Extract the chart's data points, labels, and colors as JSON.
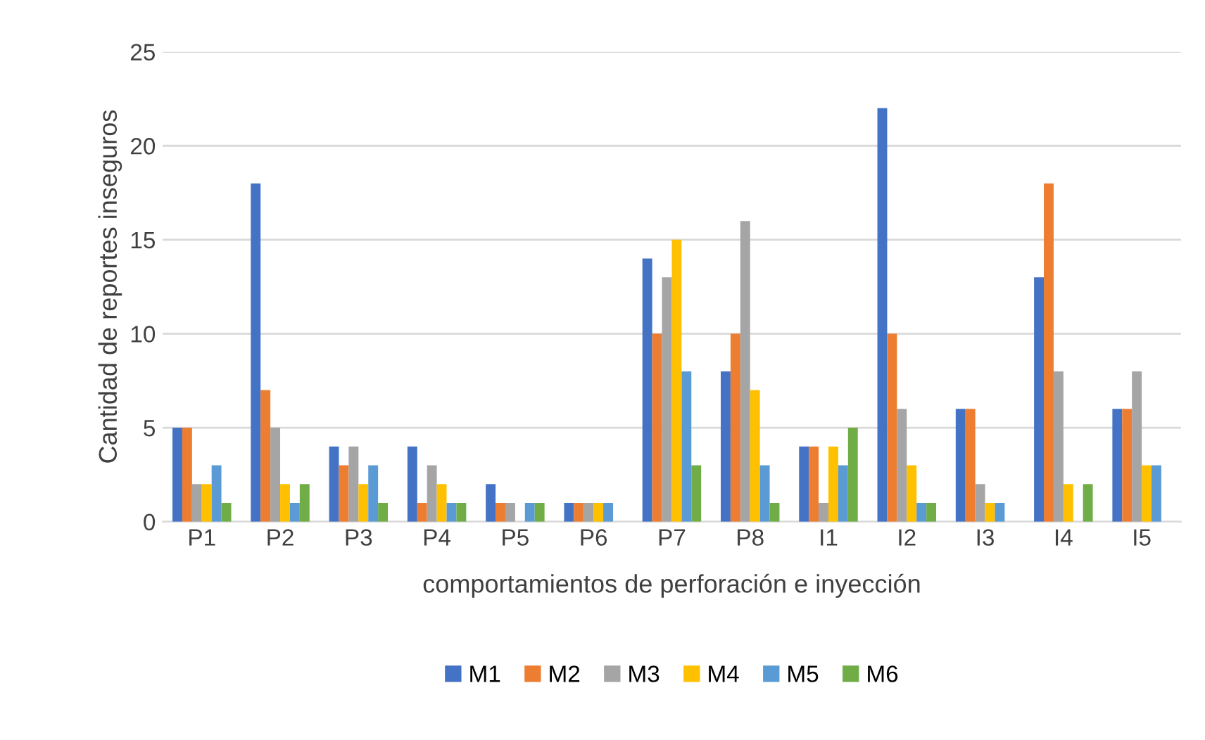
{
  "chart_data": {
    "type": "bar",
    "xlabel": "comportamientos de perforación e inyección",
    "ylabel": "Cantidad de reportes inseguros",
    "categories": [
      "P1",
      "P2",
      "P3",
      "P4",
      "P5",
      "P6",
      "P7",
      "P8",
      "I1",
      "I2",
      "I3",
      "I4",
      "I5"
    ],
    "series": [
      {
        "name": "M1",
        "color": "#4472c4",
        "values": [
          5,
          18,
          4,
          4,
          2,
          1,
          14,
          8,
          4,
          22,
          6,
          13,
          6
        ]
      },
      {
        "name": "M2",
        "color": "#ed7d31",
        "values": [
          5,
          7,
          3,
          1,
          1,
          1,
          10,
          10,
          4,
          10,
          6,
          18,
          6
        ]
      },
      {
        "name": "M3",
        "color": "#a5a5a5",
        "values": [
          2,
          5,
          4,
          3,
          1,
          1,
          13,
          16,
          1,
          6,
          2,
          8,
          8
        ]
      },
      {
        "name": "M4",
        "color": "#ffc000",
        "values": [
          2,
          2,
          2,
          2,
          0,
          1,
          15,
          7,
          4,
          3,
          1,
          2,
          3
        ]
      },
      {
        "name": "M5",
        "color": "#5b9bd5",
        "values": [
          3,
          1,
          3,
          1,
          1,
          1,
          8,
          3,
          3,
          1,
          1,
          0,
          3
        ]
      },
      {
        "name": "M6",
        "color": "#70ad47",
        "values": [
          1,
          2,
          1,
          1,
          1,
          0,
          3,
          1,
          5,
          1,
          0,
          2,
          0
        ]
      }
    ],
    "ylim": [
      0,
      25
    ],
    "yticks": [
      0,
      5,
      10,
      15,
      20,
      25
    ],
    "grid": "y",
    "legend": "bottom"
  }
}
